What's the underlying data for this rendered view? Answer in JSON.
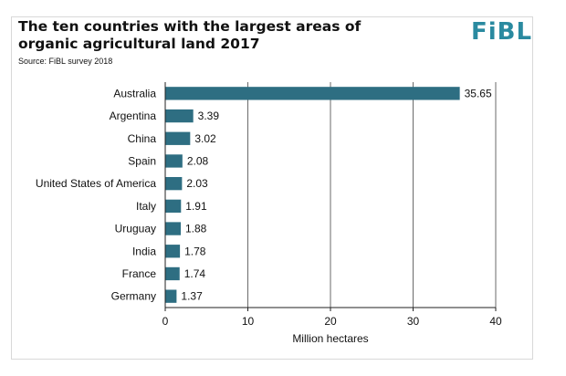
{
  "header": {
    "title": "The ten countries with the largest areas of organic agricultural land 2017",
    "source": "Source: FiBL survey 2018",
    "logo": "FiBL"
  },
  "colors": {
    "bar": "#2e6e82",
    "grid": "#444444",
    "logo": "#2a8aa0"
  },
  "chart_data": {
    "type": "bar",
    "orientation": "horizontal",
    "title": "The ten countries with the largest areas of organic agricultural land 2017",
    "subtitle": "Source: FiBL survey 2018",
    "categories": [
      "Australia",
      "Argentina",
      "China",
      "Spain",
      "United States of America",
      "Italy",
      "Uruguay",
      "India",
      "France",
      "Germany"
    ],
    "values": [
      35.65,
      3.39,
      3.02,
      2.08,
      2.03,
      1.91,
      1.88,
      1.78,
      1.74,
      1.37
    ],
    "value_labels": [
      "35.65",
      "3.39",
      "3.02",
      "2.08",
      "2.03",
      "1.91",
      "1.88",
      "1.78",
      "1.74",
      "1.37"
    ],
    "xlabel": "Million hectares",
    "ylabel": "",
    "xlim": [
      0,
      40
    ],
    "xticks": [
      0,
      10,
      20,
      30,
      40
    ],
    "grid": true,
    "legend": "none"
  }
}
